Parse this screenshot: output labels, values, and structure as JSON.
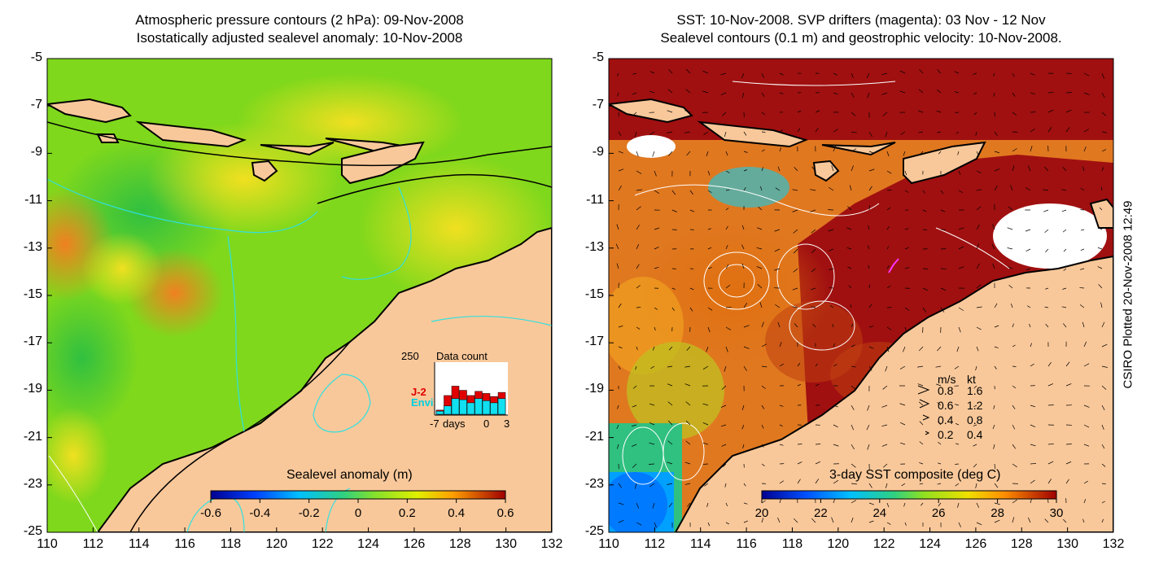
{
  "left_panel": {
    "title_line1": "Atmospheric pressure contours (2 hPa): 09-Nov-2008",
    "title_line2": "Isostatically adjusted sealevel anomaly: 10-Nov-2008",
    "colorbar_label": "Sealevel anomaly (m)",
    "colorbar_ticks": [
      "-0.6",
      "-0.4",
      "-0.2",
      "0",
      "0.2",
      "0.4",
      "0.6"
    ],
    "inset": {
      "max_label": "250",
      "title": "Data count",
      "series1": "J-2",
      "series2": "Envi",
      "xlabel": "days",
      "x_ticks": [
        "-7",
        "0",
        "3"
      ],
      "j2_values": [
        20,
        90,
        135,
        115,
        90,
        110,
        100,
        85,
        105
      ],
      "envi_values": [
        15,
        40,
        75,
        70,
        55,
        75,
        65,
        55,
        75
      ]
    }
  },
  "right_panel": {
    "title_line1": "SST: 10-Nov-2008. SVP drifters (magenta): 03 Nov - 12 Nov",
    "title_line2": "Sealevel contours (0.1 m) and geostrophic velocity: 10-Nov-2008.",
    "colorbar_label": "3-day SST composite (deg C)",
    "colorbar_ticks": [
      "20",
      "22",
      "24",
      "26",
      "28",
      "30"
    ],
    "legend": {
      "header_ms": "m/s",
      "header_kt": "kt",
      "rows": [
        {
          "ms": "0.8",
          "kt": "1.6"
        },
        {
          "ms": "0.6",
          "kt": "1.2"
        },
        {
          "ms": "0.4",
          "kt": "0.8"
        },
        {
          "ms": "0.2",
          "kt": "0.4"
        }
      ]
    }
  },
  "y_ticks": [
    "-5",
    "-7",
    "-9",
    "-11",
    "-13",
    "-15",
    "-17",
    "-19",
    "-21",
    "-23",
    "-25"
  ],
  "x_ticks": [
    "110",
    "112",
    "114",
    "116",
    "118",
    "120",
    "122",
    "124",
    "126",
    "128",
    "130",
    "132"
  ],
  "credit": "CSIRO Plotted 20-Nov-2008 12:49",
  "colors": {
    "land": "#f9c89a",
    "sla_mid": "#9be21a",
    "sst_warm": "#a01010",
    "drifter": "#ff33ff"
  }
}
